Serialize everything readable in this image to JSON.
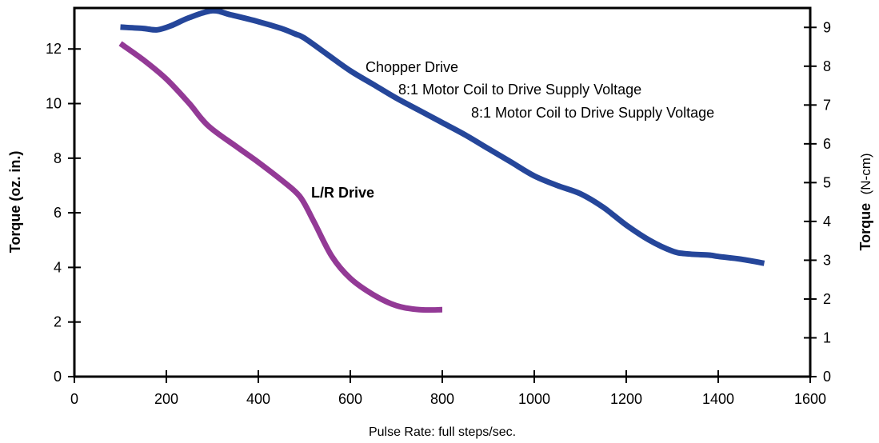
{
  "chart_data": {
    "type": "line",
    "xlabel": "Pulse Rate: full steps/sec.",
    "ylabel": "Torque (oz. in.)",
    "y2label_bold": "Torque",
    "y2label_unit": "(N-cm)",
    "xlim": [
      0,
      1600
    ],
    "ylim": [
      0,
      13.5
    ],
    "y2lim": [
      0,
      9.5
    ],
    "xticks": [
      0,
      200,
      400,
      600,
      800,
      1000,
      1200,
      1400,
      1600
    ],
    "yticks": [
      0,
      2,
      4,
      6,
      8,
      10,
      12
    ],
    "y2ticks": [
      0,
      1,
      2,
      3,
      4,
      5,
      6,
      7,
      8,
      9
    ],
    "grid": false,
    "series": [
      {
        "name": "Chopper Drive",
        "color": "#25469A",
        "x": [
          100,
          150,
          180,
          210,
          250,
          300,
          340,
          400,
          450,
          480,
          500,
          550,
          600,
          650,
          700,
          750,
          800,
          850,
          900,
          950,
          1000,
          1050,
          1100,
          1150,
          1200,
          1250,
          1300,
          1330,
          1380,
          1400,
          1450,
          1500
        ],
        "y": [
          12.8,
          12.75,
          12.7,
          12.85,
          13.15,
          13.4,
          13.25,
          13.0,
          12.75,
          12.55,
          12.4,
          11.8,
          11.2,
          10.7,
          10.2,
          9.75,
          9.3,
          8.85,
          8.35,
          7.85,
          7.35,
          7.0,
          6.7,
          6.2,
          5.55,
          5.0,
          4.6,
          4.5,
          4.45,
          4.4,
          4.3,
          4.15
        ]
      },
      {
        "name": "L/R Drive",
        "color": "#933A96",
        "x": [
          100,
          150,
          200,
          250,
          290,
          350,
          400,
          450,
          490,
          520,
          560,
          600,
          650,
          700,
          750,
          800
        ],
        "y": [
          12.2,
          11.6,
          10.9,
          10.0,
          9.2,
          8.45,
          7.85,
          7.2,
          6.6,
          5.7,
          4.4,
          3.6,
          3.0,
          2.6,
          2.45,
          2.45
        ]
      }
    ],
    "annotations": [
      {
        "text": "Chopper Drive",
        "color": "#25469A"
      },
      {
        "text": "8:1 Motor Coil to Drive Supply Voltage",
        "color": "#000000"
      },
      {
        "text": "8:1 Motor Coil to Drive Supply Voltage",
        "color": "#000000"
      },
      {
        "text": "L/R Drive",
        "color": "#933A96"
      }
    ]
  }
}
